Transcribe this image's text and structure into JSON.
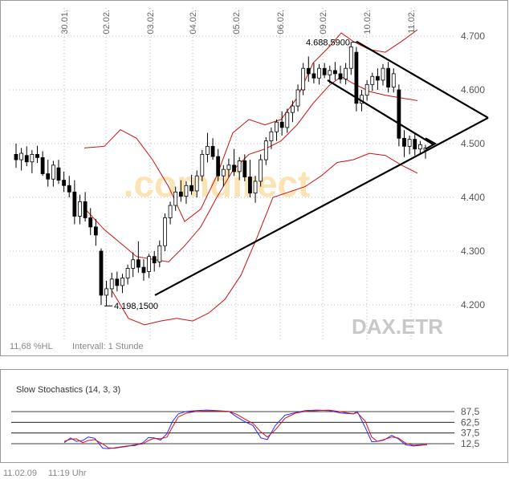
{
  "chart_data": [
    {
      "type": "candlestick",
      "title": "DAX.ETR",
      "interval_label": "Intervall: 1 Stunde",
      "hl_label": "11,68 %HL",
      "watermark": "comdirect",
      "x_ticks": [
        "30.01.",
        "02.02.",
        "03.02.",
        "04.02.",
        "05.02.",
        "06.02.",
        "09.02.",
        "10.02.",
        "11.02."
      ],
      "y_ticks": [
        "4.700",
        "4.600",
        "4.500",
        "4.400",
        "4.300",
        "4.200"
      ],
      "y_tick_values": [
        4700,
        4600,
        4500,
        4400,
        4300,
        4200
      ],
      "ylim": [
        4160,
        4740
      ],
      "annotations": [
        {
          "text": "4.688,5900",
          "value": 4688.59
        },
        {
          "text": "4.198,1500",
          "value": 4198.15
        }
      ],
      "candles": [
        [
          4480,
          4500,
          4455,
          4470
        ],
        [
          4470,
          4492,
          4450,
          4482
        ],
        [
          4478,
          4495,
          4458,
          4466
        ],
        [
          4466,
          4488,
          4445,
          4480
        ],
        [
          4480,
          4496,
          4464,
          4474
        ],
        [
          4474,
          4486,
          4440,
          4444
        ],
        [
          4444,
          4470,
          4420,
          4434
        ],
        [
          4434,
          4468,
          4420,
          4460
        ],
        [
          4455,
          4470,
          4425,
          4432
        ],
        [
          4432,
          4448,
          4410,
          4422
        ],
        [
          4422,
          4440,
          4400,
          4410
        ],
        [
          4410,
          4432,
          4350,
          4365
        ],
        [
          4365,
          4405,
          4350,
          4392
        ],
        [
          4392,
          4410,
          4355,
          4362
        ],
        [
          4362,
          4380,
          4330,
          4345
        ],
        [
          4345,
          4360,
          4310,
          4330
        ],
        [
          4300,
          4305,
          4200,
          4218
        ],
        [
          4218,
          4245,
          4198,
          4230
        ],
        [
          4230,
          4260,
          4214,
          4248
        ],
        [
          4248,
          4262,
          4225,
          4236
        ],
        [
          4236,
          4258,
          4222,
          4250
        ],
        [
          4250,
          4275,
          4238,
          4268
        ],
        [
          4268,
          4298,
          4252,
          4284
        ],
        [
          4284,
          4318,
          4260,
          4270
        ],
        [
          4270,
          4285,
          4245,
          4260
        ],
        [
          4262,
          4295,
          4250,
          4290
        ],
        [
          4290,
          4300,
          4262,
          4278
        ],
        [
          4280,
          4320,
          4270,
          4310
        ],
        [
          4310,
          4370,
          4300,
          4362
        ],
        [
          4362,
          4392,
          4350,
          4385
        ],
        [
          4385,
          4420,
          4375,
          4410
        ],
        [
          4410,
          4432,
          4392,
          4402
        ],
        [
          4402,
          4430,
          4388,
          4422
        ],
        [
          4422,
          4442,
          4405,
          4412
        ],
        [
          4412,
          4450,
          4400,
          4440
        ],
        [
          4440,
          4488,
          4430,
          4480
        ],
        [
          4480,
          4520,
          4465,
          4495
        ],
        [
          4495,
          4510,
          4470,
          4476
        ],
        [
          4476,
          4490,
          4430,
          4440
        ],
        [
          4440,
          4460,
          4420,
          4452
        ],
        [
          4452,
          4472,
          4438,
          4460
        ],
        [
          4460,
          4490,
          4440,
          4448
        ],
        [
          4448,
          4475,
          4432,
          4468
        ],
        [
          4468,
          4480,
          4430,
          4438
        ],
        [
          4438,
          4470,
          4400,
          4408
        ],
        [
          4408,
          4440,
          4390,
          4430
        ],
        [
          4430,
          4480,
          4420,
          4470
        ],
        [
          4470,
          4512,
          4460,
          4505
        ],
        [
          4505,
          4530,
          4490,
          4522
        ],
        [
          4522,
          4545,
          4505,
          4540
        ],
        [
          4540,
          4560,
          4515,
          4530
        ],
        [
          4530,
          4565,
          4520,
          4558
        ],
        [
          4558,
          4580,
          4540,
          4570
        ],
        [
          4570,
          4610,
          4560,
          4600
        ],
        [
          4600,
          4650,
          4590,
          4640
        ],
        [
          4640,
          4662,
          4615,
          4630
        ],
        [
          4630,
          4650,
          4612,
          4622
        ],
        [
          4622,
          4648,
          4610,
          4640
        ],
        [
          4640,
          4650,
          4622,
          4628
        ],
        [
          4628,
          4645,
          4612,
          4636
        ],
        [
          4636,
          4652,
          4618,
          4630
        ],
        [
          4630,
          4645,
          4612,
          4620
        ],
        [
          4620,
          4650,
          4610,
          4640
        ],
        [
          4640,
          4689,
          4628,
          4680
        ],
        [
          4670,
          4680,
          4560,
          4575
        ],
        [
          4575,
          4600,
          4560,
          4590
        ],
        [
          4590,
          4618,
          4580,
          4610
        ],
        [
          4610,
          4632,
          4598,
          4625
        ],
        [
          4625,
          4640,
          4600,
          4618
        ],
        [
          4618,
          4648,
          4608,
          4640
        ],
        [
          4640,
          4652,
          4595,
          4605
        ],
        [
          4605,
          4640,
          4595,
          4630
        ],
        [
          4600,
          4610,
          4495,
          4510
        ],
        [
          4510,
          4525,
          4475,
          4495
        ],
        [
          4495,
          4515,
          4480,
          4508
        ],
        [
          4508,
          4520,
          4478,
          4490
        ],
        [
          4490,
          4505,
          4482,
          4498
        ],
        [
          4488,
          4498,
          4472,
          4492
        ]
      ],
      "bollinger": {
        "upper": [
          [
            105,
            4492
          ],
          [
            130,
            4495
          ],
          [
            150,
            4526
          ],
          [
            170,
            4510
          ],
          [
            190,
            4470
          ],
          [
            210,
            4420
          ],
          [
            230,
            4355
          ],
          [
            250,
            4378
          ],
          [
            270,
            4440
          ],
          [
            290,
            4520
          ],
          [
            310,
            4545
          ],
          [
            330,
            4535
          ],
          [
            350,
            4545
          ],
          [
            370,
            4585
          ],
          [
            390,
            4650
          ],
          [
            410,
            4680
          ],
          [
            425,
            4706
          ],
          [
            440,
            4690
          ],
          [
            460,
            4675
          ],
          [
            480,
            4670
          ],
          [
            500,
            4690
          ],
          [
            520,
            4712
          ]
        ],
        "middle": [
          [
            105,
            4380
          ],
          [
            130,
            4340
          ],
          [
            150,
            4315
          ],
          [
            170,
            4290
          ],
          [
            190,
            4285
          ],
          [
            210,
            4280
          ],
          [
            230,
            4310
          ],
          [
            250,
            4345
          ],
          [
            270,
            4400
          ],
          [
            290,
            4450
          ],
          [
            310,
            4480
          ],
          [
            330,
            4490
          ],
          [
            350,
            4505
          ],
          [
            370,
            4535
          ],
          [
            390,
            4575
          ],
          [
            410,
            4608
          ],
          [
            425,
            4625
          ],
          [
            440,
            4612
          ],
          [
            460,
            4597
          ],
          [
            480,
            4590
          ],
          [
            500,
            4585
          ],
          [
            520,
            4580
          ]
        ],
        "lower": [
          [
            140,
            4225
          ],
          [
            160,
            4175
          ],
          [
            180,
            4163
          ],
          [
            200,
            4170
          ],
          [
            220,
            4175
          ],
          [
            240,
            4170
          ],
          [
            260,
            4185
          ],
          [
            280,
            4210
          ],
          [
            300,
            4255
          ],
          [
            320,
            4325
          ],
          [
            340,
            4400
          ],
          [
            360,
            4410
          ],
          [
            380,
            4420
          ],
          [
            400,
            4440
          ],
          [
            420,
            4465
          ],
          [
            440,
            4470
          ],
          [
            460,
            4482
          ],
          [
            480,
            4478
          ],
          [
            500,
            4460
          ],
          [
            520,
            4445
          ]
        ]
      },
      "trendlines": [
        {
          "from": [
            193,
            4218
          ],
          "to": [
            608,
            4548
          ]
        },
        {
          "from": [
            408,
            4618
          ],
          "to": [
            540,
            4498
          ]
        },
        {
          "from": [
            444,
            4690
          ],
          "to": [
            608,
            4548
          ]
        }
      ]
    },
    {
      "type": "line",
      "title": "Slow Stochastics (14, 3, 3)",
      "y_ticks": [
        "87,5",
        "62,5",
        "37,5",
        "12,5"
      ],
      "y_tick_values": [
        87.5,
        62.5,
        37.5,
        12.5
      ],
      "ylim": [
        0,
        100
      ],
      "series": [
        {
          "color": "#2b2bff",
          "values": [
            [
              80,
              15
            ],
            [
              88,
              26
            ],
            [
              95,
              18
            ],
            [
              103,
              20
            ],
            [
              110,
              28
            ],
            [
              118,
              25
            ],
            [
              128,
              2
            ],
            [
              135,
              1
            ],
            [
              143,
              3
            ],
            [
              150,
              5
            ],
            [
              158,
              7
            ],
            [
              168,
              8
            ],
            [
              178,
              15
            ],
            [
              185,
              27
            ],
            [
              192,
              26
            ],
            [
              200,
              21
            ],
            [
              208,
              36
            ],
            [
              215,
              65
            ],
            [
              222,
              82
            ],
            [
              232,
              88
            ],
            [
              245,
              90
            ],
            [
              258,
              91
            ],
            [
              270,
              90
            ],
            [
              285,
              88
            ],
            [
              295,
              75
            ],
            [
              305,
              64
            ],
            [
              315,
              55
            ],
            [
              325,
              26
            ],
            [
              333,
              22
            ],
            [
              343,
              55
            ],
            [
              355,
              79
            ],
            [
              368,
              85
            ],
            [
              380,
              90
            ],
            [
              395,
              91
            ],
            [
              410,
              90
            ],
            [
              425,
              84
            ],
            [
              440,
              82
            ],
            [
              445,
              88
            ],
            [
              455,
              50
            ],
            [
              463,
              17
            ],
            [
              470,
              18
            ],
            [
              478,
              21
            ],
            [
              488,
              32
            ],
            [
              496,
              24
            ],
            [
              505,
              10
            ],
            [
              515,
              7
            ],
            [
              525,
              9
            ],
            [
              532,
              10
            ]
          ]
        },
        {
          "color": "#dd1111",
          "values": [
            [
              80,
              18
            ],
            [
              88,
              23
            ],
            [
              95,
              24
            ],
            [
              103,
              15
            ],
            [
              110,
              20
            ],
            [
              118,
              22
            ],
            [
              128,
              12
            ],
            [
              135,
              3
            ],
            [
              143,
              2
            ],
            [
              150,
              4
            ],
            [
              158,
              6
            ],
            [
              168,
              10
            ],
            [
              178,
              12
            ],
            [
              185,
              20
            ],
            [
              192,
              25
            ],
            [
              200,
              24
            ],
            [
              208,
              28
            ],
            [
              215,
              52
            ],
            [
              222,
              75
            ],
            [
              232,
              84
            ],
            [
              245,
              88
            ],
            [
              258,
              89
            ],
            [
              270,
              89
            ],
            [
              285,
              88
            ],
            [
              295,
              81
            ],
            [
              305,
              70
            ],
            [
              315,
              60
            ],
            [
              325,
              40
            ],
            [
              333,
              28
            ],
            [
              343,
              45
            ],
            [
              355,
              72
            ],
            [
              368,
              84
            ],
            [
              380,
              88
            ],
            [
              395,
              90
            ],
            [
              410,
              91
            ],
            [
              425,
              87
            ],
            [
              440,
              82
            ],
            [
              445,
              85
            ],
            [
              455,
              65
            ],
            [
              463,
              28
            ],
            [
              470,
              18
            ],
            [
              478,
              22
            ],
            [
              488,
              28
            ],
            [
              496,
              26
            ],
            [
              505,
              14
            ],
            [
              515,
              9
            ],
            [
              525,
              10
            ],
            [
              532,
              10
            ]
          ]
        }
      ]
    }
  ],
  "footer": {
    "date": "11.02.09",
    "time": "11:19 Uhr"
  }
}
